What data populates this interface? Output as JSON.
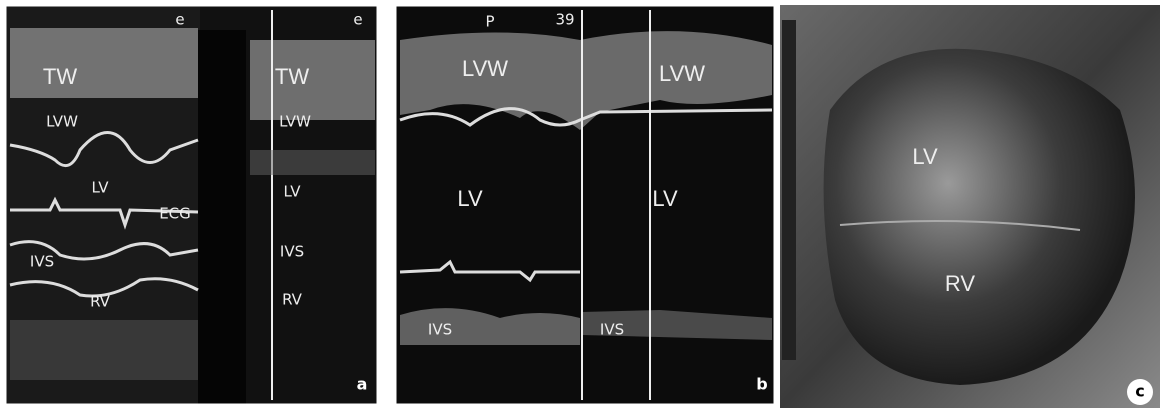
{
  "panels": [
    {
      "panel_label": "a",
      "labels": [
        "e",
        "e",
        "TW",
        "TW",
        "LVW",
        "LVW",
        "LV",
        "LV",
        "ECG",
        "IVS",
        "IVS",
        "RV",
        "RV"
      ]
    },
    {
      "panel_label": "b",
      "labels": [
        "P",
        "39",
        "LVW",
        "LVW",
        "LV",
        "LV",
        "IVS",
        "IVS"
      ]
    },
    {
      "panel_label": "c",
      "labels": [
        "LV",
        "RV"
      ]
    }
  ]
}
